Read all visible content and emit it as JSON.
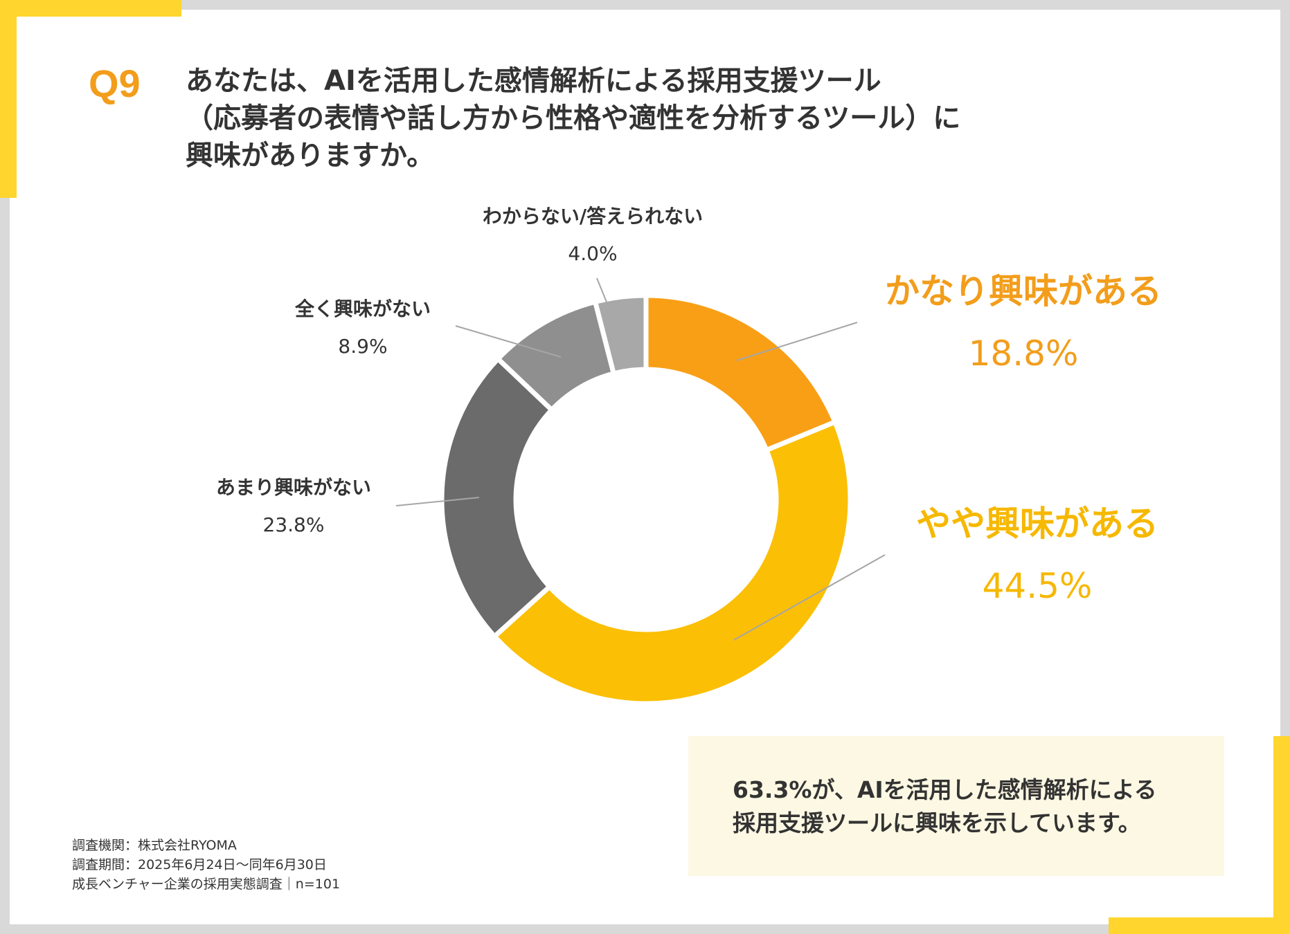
{
  "question": {
    "number": "Q9",
    "lines": [
      "あなたは、AIを活用した感情解析による採用支援ツール",
      "（応募者の表情や話し方から性格や適性を分析するツール）に",
      "興味がありますか。"
    ]
  },
  "chart_data": {
    "type": "pie",
    "variant": "donut",
    "categories": [
      "かなり興味がある",
      "やや興味がある",
      "あまり興味がない",
      "全く興味がない",
      "わからない/答えられない"
    ],
    "values": [
      18.8,
      44.5,
      23.8,
      8.9,
      4.0
    ],
    "labels": [
      "18.8%",
      "44.5%",
      "23.8%",
      "8.9%",
      "4.0%"
    ],
    "colors": [
      "#f99f16",
      "#fbbf06",
      "#6b6b6b",
      "#8f8f8f",
      "#a8a8a8"
    ],
    "label_colors": [
      "#f29d1b",
      "#f6b800",
      "#333333",
      "#333333",
      "#333333"
    ]
  },
  "callout": {
    "lines": [
      "63.3%が、AIを活用した感情解析による",
      "採用支援ツールに興味を示しています。"
    ]
  },
  "footnote": {
    "lines": [
      "調査機関：株式会社RYOMA",
      "調査期間：2025年6月24日～同年6月30日",
      "成長ベンチャー企業の採用実態調査｜n=101"
    ]
  }
}
